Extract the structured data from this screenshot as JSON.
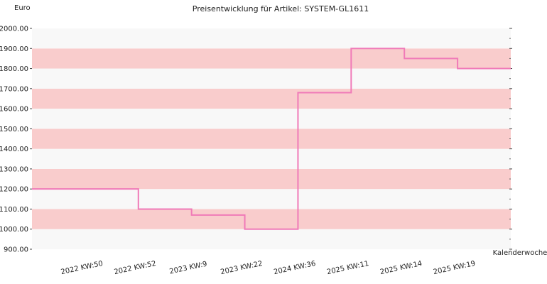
{
  "chart_data": {
    "type": "line",
    "title": "Preisentwicklung für Artikel: SYSTEM-GL1611",
    "ylabel": "Euro",
    "xlabel": "Kalenderwoche",
    "ylim": [
      900,
      2000
    ],
    "yticks": [
      "900.00",
      "1000.00",
      "1100.00",
      "1200.00",
      "1300.00",
      "1400.00",
      "1500.00",
      "1600.00",
      "1700.00",
      "1800.00",
      "1900.00",
      "2000.00"
    ],
    "categories": [
      "2022 KW:50",
      "2022 KW:52",
      "2023 KW:9",
      "2023 KW:22",
      "2024 KW:36",
      "2025 KW:11",
      "2025 KW:14",
      "2025 KW:19"
    ],
    "series": [
      {
        "values": [
          1200,
          1100,
          1070,
          1000,
          1680,
          1900,
          1850,
          1800
        ]
      }
    ],
    "line_style": "step",
    "grid": true,
    "band_colors": [
      "#f8f8f8",
      "#f9cccc"
    ],
    "line_color": "#f07ab8"
  }
}
